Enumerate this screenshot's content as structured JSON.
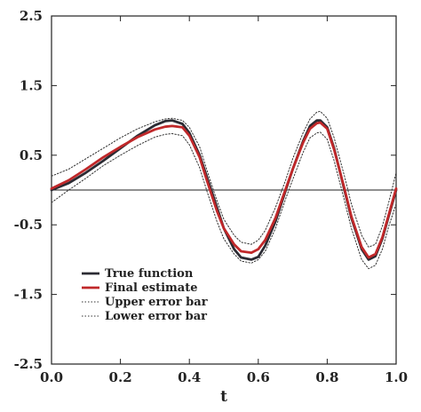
{
  "chart_data": {
    "type": "line",
    "title": "",
    "xlabel": "t",
    "ylabel": "",
    "xlim": [
      0.0,
      1.0
    ],
    "ylim": [
      -2.5,
      2.5
    ],
    "x_ticks": [
      0.0,
      0.2,
      0.4,
      0.6,
      0.8,
      1.0
    ],
    "x_tick_labels": [
      "0.0",
      "0.2",
      "0.4",
      "0.6",
      "0.8",
      "1.0"
    ],
    "y_ticks": [
      2.5,
      1.5,
      0.5,
      -0.5,
      -1.5,
      -2.5
    ],
    "y_tick_labels": [
      "2.5",
      "1.5",
      "0.5",
      "-0.5",
      "-1.5",
      "-2.5"
    ],
    "grid": false,
    "reference_line_y": 0,
    "legend_position": "lower-left",
    "series": [
      {
        "name": "True function",
        "style": "solid-thick",
        "color": "#2b2b33",
        "x": [
          0.0,
          0.05,
          0.1,
          0.15,
          0.2,
          0.25,
          0.3,
          0.33,
          0.35,
          0.38,
          0.4,
          0.43,
          0.45,
          0.48,
          0.5,
          0.53,
          0.55,
          0.58,
          0.6,
          0.62,
          0.65,
          0.68,
          0.7,
          0.73,
          0.75,
          0.77,
          0.78,
          0.8,
          0.82,
          0.85,
          0.87,
          0.9,
          0.92,
          0.94,
          0.96,
          0.98,
          1.0
        ],
        "y": [
          0.0,
          0.1,
          0.25,
          0.42,
          0.6,
          0.78,
          0.93,
          0.99,
          1.0,
          0.95,
          0.82,
          0.5,
          0.2,
          -0.25,
          -0.55,
          -0.85,
          -0.97,
          -1.0,
          -0.96,
          -0.8,
          -0.45,
          0.0,
          0.3,
          0.7,
          0.92,
          1.0,
          1.0,
          0.9,
          0.6,
          0.0,
          -0.4,
          -0.85,
          -1.0,
          -0.95,
          -0.7,
          -0.35,
          0.0
        ]
      },
      {
        "name": "Final estimate",
        "style": "solid-thick",
        "color": "#c0282a",
        "x": [
          0.0,
          0.05,
          0.1,
          0.15,
          0.2,
          0.25,
          0.3,
          0.33,
          0.35,
          0.38,
          0.4,
          0.43,
          0.45,
          0.48,
          0.5,
          0.53,
          0.55,
          0.58,
          0.6,
          0.62,
          0.65,
          0.68,
          0.7,
          0.73,
          0.75,
          0.77,
          0.78,
          0.8,
          0.82,
          0.85,
          0.87,
          0.9,
          0.92,
          0.94,
          0.96,
          0.98,
          1.0
        ],
        "y": [
          0.02,
          0.14,
          0.3,
          0.47,
          0.62,
          0.76,
          0.87,
          0.91,
          0.92,
          0.9,
          0.78,
          0.47,
          0.15,
          -0.3,
          -0.55,
          -0.78,
          -0.88,
          -0.9,
          -0.85,
          -0.72,
          -0.4,
          0.02,
          0.3,
          0.68,
          0.88,
          0.96,
          0.97,
          0.88,
          0.58,
          0.02,
          -0.38,
          -0.82,
          -0.97,
          -0.92,
          -0.68,
          -0.33,
          0.02
        ]
      },
      {
        "name": "Upper error bar",
        "style": "dotted",
        "color": "#333333",
        "x": [
          0.0,
          0.05,
          0.1,
          0.15,
          0.2,
          0.25,
          0.3,
          0.33,
          0.35,
          0.38,
          0.4,
          0.43,
          0.45,
          0.48,
          0.5,
          0.53,
          0.55,
          0.58,
          0.6,
          0.62,
          0.65,
          0.68,
          0.7,
          0.73,
          0.75,
          0.77,
          0.78,
          0.8,
          0.82,
          0.85,
          0.87,
          0.9,
          0.92,
          0.94,
          0.96,
          0.98,
          1.0
        ],
        "y": [
          0.2,
          0.3,
          0.45,
          0.6,
          0.75,
          0.88,
          0.98,
          1.02,
          1.03,
          1.0,
          0.9,
          0.62,
          0.3,
          -0.15,
          -0.42,
          -0.65,
          -0.75,
          -0.78,
          -0.72,
          -0.58,
          -0.25,
          0.15,
          0.45,
          0.82,
          1.02,
          1.12,
          1.13,
          1.03,
          0.75,
          0.2,
          -0.2,
          -0.65,
          -0.82,
          -0.78,
          -0.52,
          -0.15,
          0.25
        ]
      },
      {
        "name": "Lower error bar",
        "style": "dotted",
        "color": "#333333",
        "x": [
          0.0,
          0.05,
          0.1,
          0.15,
          0.2,
          0.25,
          0.3,
          0.33,
          0.35,
          0.38,
          0.4,
          0.43,
          0.45,
          0.48,
          0.5,
          0.53,
          0.55,
          0.58,
          0.6,
          0.62,
          0.65,
          0.68,
          0.7,
          0.73,
          0.75,
          0.77,
          0.78,
          0.8,
          0.82,
          0.85,
          0.87,
          0.9,
          0.92,
          0.94,
          0.96,
          0.98,
          1.0
        ],
        "y": [
          -0.18,
          0.0,
          0.17,
          0.35,
          0.5,
          0.64,
          0.76,
          0.8,
          0.81,
          0.78,
          0.65,
          0.32,
          0.0,
          -0.45,
          -0.7,
          -0.92,
          -1.02,
          -1.05,
          -1.0,
          -0.88,
          -0.55,
          -0.12,
          0.15,
          0.54,
          0.75,
          0.82,
          0.83,
          0.73,
          0.42,
          -0.15,
          -0.55,
          -1.0,
          -1.13,
          -1.08,
          -0.85,
          -0.5,
          -0.2
        ]
      }
    ]
  }
}
